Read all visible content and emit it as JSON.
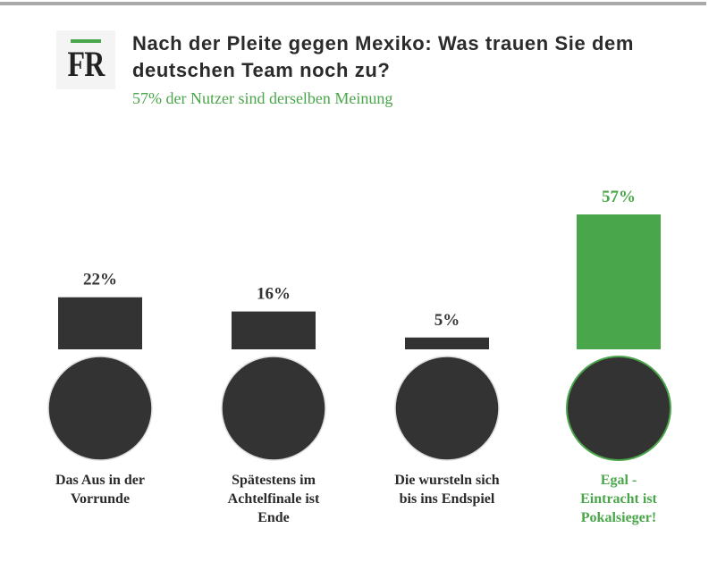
{
  "header": {
    "logo_text": "FR",
    "title": "Nach der Pleite gegen Mexiko: Was trauen Sie dem deutschen Team noch zu?",
    "subtitle": "57% der Nutzer sind derselben Meinung"
  },
  "colors": {
    "dark": "#333333",
    "accent": "#4aa64a"
  },
  "chart_data": {
    "type": "bar",
    "title": "Nach der Pleite gegen Mexiko: Was trauen Sie dem deutschen Team noch zu?",
    "categories": [
      "Das Aus in der Vorrunde",
      "Spätestens im Achtelfinale ist Ende",
      "Die wursteln sich bis ins Endspiel",
      "Egal - Eintracht ist Pokalsieger!"
    ],
    "values": [
      22,
      16,
      5,
      57
    ],
    "value_labels": [
      "22%",
      "16%",
      "5%",
      "57%"
    ],
    "highlight_index": 3,
    "unit": "%",
    "ylim": [
      0,
      57
    ],
    "grid": false
  }
}
